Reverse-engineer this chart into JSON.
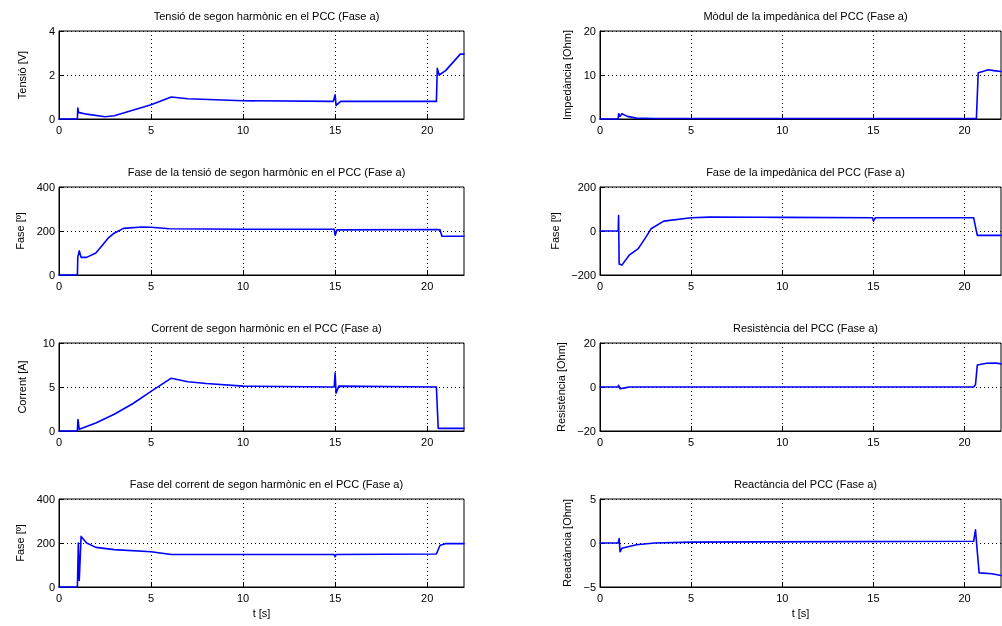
{
  "chart_data": [
    {
      "type": "line",
      "title": "Tensió de segon harmònic en el PCC (Fase a)",
      "ylabel": "Tensió [V]",
      "xlim": [
        0,
        22
      ],
      "xticks": [
        0,
        5,
        10,
        15,
        20
      ],
      "ylim": [
        0,
        4
      ],
      "yticks": [
        0,
        2,
        4
      ],
      "grid": true,
      "marker": "none",
      "line_style": "solid",
      "x": [
        0,
        1.0,
        1.02,
        1.06,
        1.5,
        2.5,
        3,
        4,
        5,
        6.1,
        7,
        10,
        14.9,
        15.0,
        15.05,
        15.3,
        20.5,
        20.55,
        20.65,
        21,
        21.8,
        22
      ],
      "series": [
        {
          "color": "#0000ff",
          "values": [
            0,
            0,
            0.5,
            0.3,
            0.22,
            0.1,
            0.15,
            0.4,
            0.65,
            1.0,
            0.92,
            0.83,
            0.8,
            1.1,
            0.62,
            0.8,
            0.8,
            2.3,
            2.0,
            2.2,
            2.95,
            2.95
          ]
        }
      ]
    },
    {
      "type": "line",
      "title": "Fase de la tensió de segon harmònic en el PCC (Fase a)",
      "ylabel": "Fase [º]",
      "xlim": [
        0,
        22
      ],
      "xticks": [
        0,
        5,
        10,
        15,
        20
      ],
      "ylim": [
        0,
        400
      ],
      "yticks": [
        0,
        200,
        400
      ],
      "grid": true,
      "marker": "none",
      "line_style": "solid",
      "x": [
        0,
        1.0,
        1.02,
        1.1,
        1.2,
        1.5,
        2,
        2.3,
        2.7,
        3,
        3.5,
        4.5,
        5,
        6,
        10,
        14.95,
        15.0,
        15.1,
        20.5,
        20.7,
        20.8,
        22
      ],
      "series": [
        {
          "color": "#0000ff",
          "values": [
            0,
            0,
            80,
            110,
            80,
            80,
            100,
            130,
            170,
            190,
            212,
            218,
            217,
            210,
            208,
            208,
            180,
            205,
            207,
            205,
            176,
            176
          ]
        }
      ]
    },
    {
      "type": "line",
      "title": "Corrent de segon harmònic en el PCC (Fase a)",
      "ylabel": "Corrent [A]",
      "xlim": [
        0,
        22
      ],
      "xticks": [
        0,
        5,
        10,
        15,
        20
      ],
      "ylim": [
        0,
        10
      ],
      "yticks": [
        0,
        5,
        10
      ],
      "grid": true,
      "marker": "none",
      "line_style": "solid",
      "x": [
        0,
        1.0,
        1.03,
        1.1,
        2,
        3,
        4,
        5,
        6.1,
        7,
        8,
        10,
        14.95,
        15.0,
        15.05,
        15.2,
        20.5,
        20.6,
        22
      ],
      "series": [
        {
          "color": "#0000ff",
          "values": [
            0,
            0,
            1.3,
            0.2,
            0.9,
            1.9,
            3.1,
            4.5,
            6.0,
            5.6,
            5.4,
            5.1,
            5.0,
            6.6,
            4.3,
            5.1,
            5.0,
            0.3,
            0.3
          ]
        }
      ]
    },
    {
      "type": "line",
      "title": "Fase del corrent de segon harmònic en el PCC (Fase a)",
      "ylabel": "Fase [º]",
      "xlabel": "t [s]",
      "xlim": [
        0,
        22
      ],
      "xticks": [
        0,
        5,
        10,
        15,
        20
      ],
      "ylim": [
        0,
        400
      ],
      "yticks": [
        0,
        200,
        400
      ],
      "grid": true,
      "marker": "none",
      "line_style": "solid",
      "x": [
        0,
        1.0,
        1.05,
        1.1,
        1.2,
        1.5,
        2,
        3,
        5,
        6.1,
        10,
        14.95,
        15,
        15.05,
        20.5,
        20.7,
        21,
        22
      ],
      "series": [
        {
          "color": "#0000ff",
          "values": [
            0,
            0,
            200,
            30,
            230,
            200,
            180,
            170,
            160,
            148,
            148,
            148,
            138,
            148,
            150,
            190,
            197,
            197
          ]
        }
      ]
    },
    {
      "type": "line",
      "title": "Mòdul de la impedànica del PCC (Fase a)",
      "ylabel": "Impedància [Ohm]",
      "xlim": [
        0,
        22
      ],
      "xticks": [
        0,
        5,
        10,
        15,
        20
      ],
      "ylim": [
        0,
        20
      ],
      "yticks": [
        0,
        10,
        20
      ],
      "grid": true,
      "marker": "none",
      "line_style": "solid",
      "x": [
        0,
        1,
        1.02,
        1.1,
        1.2,
        1.5,
        2,
        3,
        20.5,
        20.65,
        20.75,
        21,
        21.3,
        21.6,
        22
      ],
      "series": [
        {
          "color": "#0000ff",
          "values": [
            0,
            0,
            1.2,
            0.6,
            1.2,
            0.6,
            0.2,
            0.1,
            0.1,
            0.1,
            10.5,
            10.8,
            11.2,
            11,
            10.8
          ]
        }
      ]
    },
    {
      "type": "line",
      "title": "Fase de la impedànica del PCC (Fase a)",
      "ylabel": "Fase [º]",
      "xlim": [
        0,
        22
      ],
      "xticks": [
        0,
        5,
        10,
        15,
        20
      ],
      "ylim": [
        -200,
        200
      ],
      "yticks": [
        {
          "value": -200,
          "label": "−200"
        },
        0,
        200
      ],
      "grid": true,
      "marker": "none",
      "line_style": "solid",
      "x": [
        0,
        1,
        1.02,
        1.05,
        1.2,
        1.6,
        2.1,
        2.5,
        2.8,
        3.5,
        5,
        6,
        10,
        14.95,
        15,
        15.1,
        20.5,
        20.7,
        22
      ],
      "series": [
        {
          "color": "#0000ff",
          "values": [
            0,
            0,
            70,
            -150,
            -155,
            -110,
            -80,
            -30,
            10,
            45,
            60,
            63,
            62,
            60,
            45,
            60,
            60,
            -20,
            -20
          ]
        }
      ]
    },
    {
      "type": "line",
      "title": "Resistència del PCC (Fase a)",
      "ylabel": "Resistència [Ohm]",
      "xlim": [
        0,
        22
      ],
      "xticks": [
        0,
        5,
        10,
        15,
        20
      ],
      "ylim": [
        -20,
        20
      ],
      "yticks": [
        {
          "value": -20,
          "label": "−20"
        },
        0,
        20
      ],
      "grid": true,
      "marker": "none",
      "line_style": "solid",
      "x": [
        0,
        1,
        1.02,
        1.1,
        1.3,
        1.6,
        20.5,
        20.6,
        20.7,
        21.2,
        21.7,
        22
      ],
      "series": [
        {
          "color": "#0000ff",
          "values": [
            0,
            0,
            0.8,
            -0.8,
            -0.5,
            0,
            0,
            1,
            10,
            10.8,
            10.9,
            10.5
          ]
        }
      ]
    },
    {
      "type": "line",
      "title": "Reactància del PCC (Fase a)",
      "ylabel": "Reactància [Ohm]",
      "xlabel": "t [s]",
      "xlim": [
        0,
        22
      ],
      "xticks": [
        0,
        5,
        10,
        15,
        20
      ],
      "ylim": [
        -5,
        5
      ],
      "yticks": [
        {
          "value": -5,
          "label": "−5"
        },
        0,
        5
      ],
      "grid": true,
      "marker": "none",
      "line_style": "solid",
      "x": [
        0,
        1,
        1.05,
        1.1,
        1.2,
        2,
        3,
        5,
        20.5,
        20.6,
        20.7,
        20.8,
        21.5,
        22
      ],
      "series": [
        {
          "color": "#0000ff",
          "values": [
            0,
            0,
            0.5,
            -1,
            -0.6,
            -0.2,
            0,
            0.1,
            0.2,
            1.5,
            -1,
            -3.4,
            -3.5,
            -3.7
          ]
        }
      ]
    }
  ]
}
